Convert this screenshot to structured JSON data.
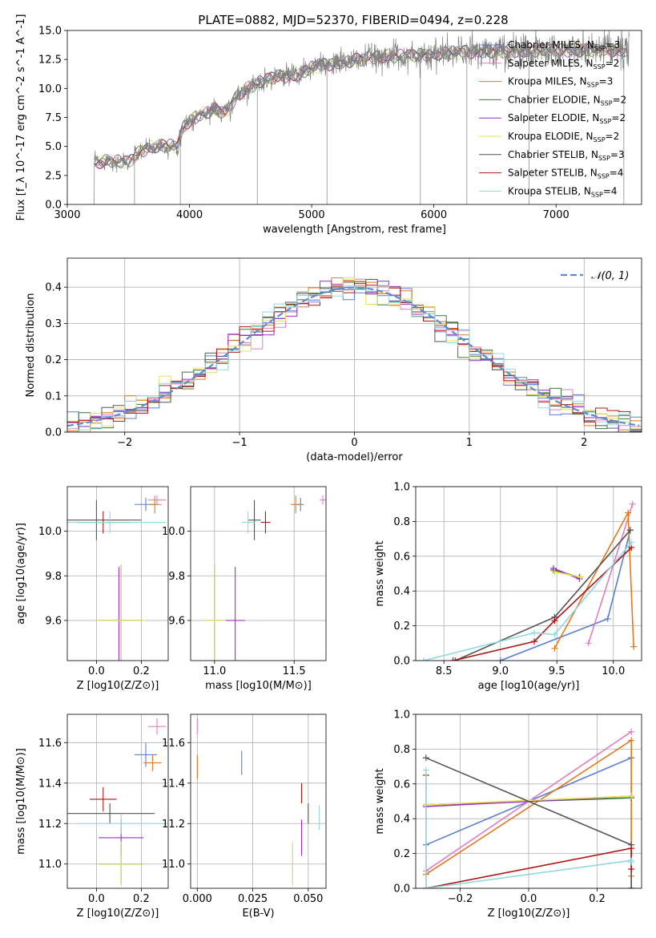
{
  "figure_title": "PLATE=0882, MJD=52370, FIBERID=0494, z=0.228",
  "legend_entries": [
    {
      "label": "Chabrier MILES, N",
      "sub": "SSP",
      "suffix": "=3",
      "color": "#5b7fd6"
    },
    {
      "label": "Salpeter MILES, N",
      "sub": "SSP",
      "suffix": "=2",
      "color": "#e07fc0"
    },
    {
      "label": "Kroupa MILES, N",
      "sub": "SSP",
      "suffix": "=3",
      "color": "#e07a1f"
    },
    {
      "label": "Chabrier ELODIE, N",
      "sub": "SSP",
      "suffix": "=2",
      "color": "#3a7a3a"
    },
    {
      "label": "Salpeter ELODIE, N",
      "sub": "SSP",
      "suffix": "=2",
      "color": "#9b2fc4"
    },
    {
      "label": "Kroupa ELODIE, N",
      "sub": "SSP",
      "suffix": "=2",
      "color": "#e6e05a"
    },
    {
      "label": "Chabrier STELIB, N",
      "sub": "SSP",
      "suffix": "=3",
      "color": "#555555"
    },
    {
      "label": "Salpeter STELIB, N",
      "sub": "SSP",
      "suffix": "=4",
      "color": "#b01515"
    },
    {
      "label": "Kroupa STELIB, N",
      "sub": "SSP",
      "suffix": "=4",
      "color": "#8fd9e0"
    }
  ],
  "chart_data": [
    {
      "id": "spectrum",
      "type": "line",
      "xlabel": "wavelength [Angstrom, rest frame]",
      "ylabel": "Flux [f_λ 10^-17 erg cm^-2 s^-1 A^-1]",
      "xlim": [
        3000,
        7700
      ],
      "ylim": [
        0,
        15
      ],
      "xticks": [
        "3000",
        "4000",
        "5000",
        "6000",
        "7000"
      ],
      "yticks": [
        "0.0",
        "2.5",
        "5.0",
        "7.5",
        "10.0",
        "12.5",
        "15.0"
      ],
      "data_color": "#808080",
      "profile_x": [
        3220,
        3350,
        3500,
        3600,
        3700,
        3800,
        3900,
        3950,
        4000,
        4100,
        4200,
        4300,
        4400,
        4500,
        4600,
        4700,
        4800,
        4900,
        5000,
        5200,
        5400,
        5600,
        5800,
        6000,
        6200,
        6400,
        6600,
        6800,
        7000,
        7200,
        7400,
        7600
      ],
      "profile_y": [
        3.6,
        3.8,
        3.6,
        4.6,
        5.0,
        5.1,
        5.0,
        6.6,
        7.2,
        7.8,
        8.2,
        7.9,
        9.5,
        10.2,
        10.6,
        11.0,
        11.1,
        11.2,
        11.8,
        12.2,
        12.5,
        12.8,
        12.8,
        13.0,
        13.1,
        13.2,
        13.2,
        13.3,
        13.3,
        13.3,
        13.3,
        13.3
      ],
      "grid": false,
      "legend_position": "upper right"
    },
    {
      "id": "residual-histogram",
      "type": "histogram",
      "xlabel": "(data-model)/error",
      "ylabel": "Normed distribution",
      "xlim": [
        -2.5,
        2.5
      ],
      "ylim": [
        0,
        0.48
      ],
      "xticks": [
        "−2",
        "−1",
        "0",
        "1",
        "2"
      ],
      "yticks": [
        "0.0",
        "0.1",
        "0.2",
        "0.3",
        "0.4"
      ],
      "reference_label": "𝒩(0, 1)",
      "reference_color": "#5b8bd6",
      "bin_width": 0.1,
      "grid": true,
      "legend_position": "upper right"
    },
    {
      "id": "age-vs-Z",
      "type": "errorbar",
      "xlabel": "Z [log10(Z/Z⊙)]",
      "ylabel": "age [log10(age/yr)]",
      "xlim": [
        -0.13,
        0.32
      ],
      "ylim": [
        9.42,
        10.2
      ],
      "xticks": [
        "0.0",
        "0.2"
      ],
      "yticks": [
        "9.6",
        "9.8",
        "10.0"
      ],
      "points": [
        {
          "color": "#5b7fd6",
          "x": 0.22,
          "xerr": 0.05,
          "y": 10.12,
          "yerr": 0.03
        },
        {
          "color": "#e07fc0",
          "x": 0.27,
          "xerr": 0.04,
          "y": 10.14,
          "yerr": 0.02
        },
        {
          "color": "#e07a1f",
          "x": 0.26,
          "xerr": 0.03,
          "y": 10.12,
          "yerr": 0.04
        },
        {
          "color": "#3a7a3a",
          "x": 0.11,
          "xerr": 0.1,
          "y": 9.6,
          "yerr": 0.25
        },
        {
          "color": "#9b2fc4",
          "x": 0.1,
          "xerr": 0.1,
          "y": 9.6,
          "yerr": 0.24
        },
        {
          "color": "#e6e05a",
          "x": 0.11,
          "xerr": 0.11,
          "y": 9.6,
          "yerr": 0.25
        },
        {
          "color": "#555555",
          "x": 0.0,
          "xerr": 0.2,
          "y": 10.05,
          "yerr": 0.09
        },
        {
          "color": "#b01515",
          "x": 0.03,
          "xerr": 0.12,
          "y": 10.04,
          "yerr": 0.05
        },
        {
          "color": "#8fd9e0",
          "x": 0.06,
          "xerr": 0.25,
          "y": 10.04,
          "yerr": 0.05
        }
      ],
      "grid": true
    },
    {
      "id": "age-vs-mass",
      "type": "errorbar",
      "xlabel": "mass [log10(M/M⊙)]",
      "ylabel": "",
      "xlim": [
        10.85,
        11.7
      ],
      "ylim": [
        9.42,
        10.2
      ],
      "xticks": [
        "11.0",
        "11.5"
      ],
      "yticks": [
        "9.6",
        "9.8",
        "10.0"
      ],
      "points": [
        {
          "color": "#5b7fd6",
          "x": 11.54,
          "xerr": 0.02,
          "y": 10.12,
          "yerr": 0.03
        },
        {
          "color": "#e07fc0",
          "x": 11.68,
          "xerr": 0.02,
          "y": 10.14,
          "yerr": 0.02
        },
        {
          "color": "#e07a1f",
          "x": 11.51,
          "xerr": 0.03,
          "y": 10.12,
          "yerr": 0.04
        },
        {
          "color": "#3a7a3a",
          "x": 11.0,
          "xerr": 0.07,
          "y": 9.6,
          "yerr": 0.25
        },
        {
          "color": "#9b2fc4",
          "x": 11.13,
          "xerr": 0.06,
          "y": 9.6,
          "yerr": 0.24
        },
        {
          "color": "#e6e05a",
          "x": 11.0,
          "xerr": 0.07,
          "y": 9.6,
          "yerr": 0.25
        },
        {
          "color": "#555555",
          "x": 11.25,
          "xerr": 0.04,
          "y": 10.05,
          "yerr": 0.09
        },
        {
          "color": "#b01515",
          "x": 11.32,
          "xerr": 0.03,
          "y": 10.04,
          "yerr": 0.05
        },
        {
          "color": "#8fd9e0",
          "x": 11.21,
          "xerr": 0.04,
          "y": 10.04,
          "yerr": 0.05
        }
      ],
      "grid": true
    },
    {
      "id": "massweight-vs-age",
      "type": "line",
      "xlabel": "age [log10(age/yr)]",
      "ylabel": "mass weight",
      "xlim": [
        8.25,
        10.25
      ],
      "ylim": [
        0,
        1
      ],
      "xticks": [
        "8.5",
        "9.0",
        "9.5",
        "10.0"
      ],
      "yticks": [
        "0.0",
        "0.2",
        "0.4",
        "0.6",
        "0.8",
        "1.0"
      ],
      "series": [
        {
          "color": "#5b7fd6",
          "x": [
            9.0,
            9.95,
            10.15
          ],
          "y": [
            0.0,
            0.24,
            0.75
          ]
        },
        {
          "color": "#e07fc0",
          "x": [
            9.78,
            10.17
          ],
          "y": [
            0.1,
            0.9
          ]
        },
        {
          "color": "#e07a1f",
          "x": [
            9.48,
            10.13,
            10.18
          ],
          "y": [
            0.07,
            0.85,
            0.08
          ]
        },
        {
          "color": "#3a7a3a",
          "x": [
            9.47,
            9.7
          ],
          "y": [
            0.52,
            0.48
          ]
        },
        {
          "color": "#9b2fc4",
          "x": [
            9.47,
            9.7
          ],
          "y": [
            0.53,
            0.47
          ]
        },
        {
          "color": "#e6e05a",
          "x": [
            9.48,
            9.71
          ],
          "y": [
            0.51,
            0.48
          ]
        },
        {
          "color": "#555555",
          "x": [
            8.6,
            9.48,
            10.15
          ],
          "y": [
            0.0,
            0.25,
            0.75
          ]
        },
        {
          "color": "#b01515",
          "x": [
            8.58,
            9.3,
            9.48,
            10.16
          ],
          "y": [
            0.0,
            0.11,
            0.23,
            0.65
          ]
        },
        {
          "color": "#8fd9e0",
          "x": [
            8.32,
            9.3,
            9.48,
            10.16
          ],
          "y": [
            0.0,
            0.16,
            0.15,
            0.68
          ]
        }
      ],
      "grid": true
    },
    {
      "id": "mass-vs-Z",
      "type": "errorbar",
      "xlabel": "Z [log10(Z/Z⊙)]",
      "ylabel": "mass [log10(M/M⊙)]",
      "xlim": [
        -0.13,
        0.32
      ],
      "ylim": [
        10.88,
        11.74
      ],
      "xticks": [
        "0.0",
        "0.2"
      ],
      "yticks": [
        "11.0",
        "11.2",
        "11.4",
        "11.6"
      ],
      "points": [
        {
          "color": "#5b7fd6",
          "x": 0.22,
          "xerr": 0.05,
          "y": 11.54,
          "yerr": 0.06
        },
        {
          "color": "#e07fc0",
          "x": 0.27,
          "xerr": 0.04,
          "y": 11.68,
          "yerr": 0.04
        },
        {
          "color": "#e07a1f",
          "x": 0.25,
          "xerr": 0.04,
          "y": 11.5,
          "yerr": 0.04
        },
        {
          "color": "#3a7a3a",
          "x": 0.11,
          "xerr": 0.1,
          "y": 11.0,
          "yerr": 0.1
        },
        {
          "color": "#9b2fc4",
          "x": 0.11,
          "xerr": 0.1,
          "y": 11.13,
          "yerr": 0.09
        },
        {
          "color": "#e6e05a",
          "x": 0.11,
          "xerr": 0.1,
          "y": 11.0,
          "yerr": 0.11
        },
        {
          "color": "#555555",
          "x": 0.06,
          "xerr": 0.2,
          "y": 11.25,
          "yerr": 0.05
        },
        {
          "color": "#b01515",
          "x": 0.03,
          "xerr": 0.06,
          "y": 11.32,
          "yerr": 0.06
        },
        {
          "color": "#8fd9e0",
          "x": 0.11,
          "xerr": 0.2,
          "y": 11.2,
          "yerr": 0.05
        }
      ],
      "grid": true
    },
    {
      "id": "mass-vs-ebv",
      "type": "errorbar",
      "xlabel": "E(B-V)",
      "ylabel": "",
      "xlim": [
        -0.003,
        0.058
      ],
      "ylim": [
        10.88,
        11.74
      ],
      "xticks": [
        "0.000",
        "0.025",
        "0.050"
      ],
      "yticks": [
        "11.0",
        "11.2",
        "11.4",
        "11.6"
      ],
      "points": [
        {
          "color": "#5b7fd6",
          "x": 0.02,
          "xerr": 0,
          "y": 11.5,
          "yerr": 0.06
        },
        {
          "color": "#e07fc0",
          "x": 0.0,
          "xerr": 0,
          "y": 11.68,
          "yerr": 0.04
        },
        {
          "color": "#e07a1f",
          "x": 0.0,
          "xerr": 0,
          "y": 11.48,
          "yerr": 0.06
        },
        {
          "color": "#3a7a3a",
          "x": 0.043,
          "xerr": 0,
          "y": 11.0,
          "yerr": 0.1
        },
        {
          "color": "#9b2fc4",
          "x": 0.047,
          "xerr": 0,
          "y": 11.13,
          "yerr": 0.09
        },
        {
          "color": "#e6e05a",
          "x": 0.043,
          "xerr": 0,
          "y": 11.0,
          "yerr": 0.11
        },
        {
          "color": "#555555",
          "x": 0.05,
          "xerr": 0,
          "y": 11.25,
          "yerr": 0.05
        },
        {
          "color": "#b01515",
          "x": 0.047,
          "xerr": 0,
          "y": 11.35,
          "yerr": 0.05
        },
        {
          "color": "#8fd9e0",
          "x": 0.055,
          "xerr": 0,
          "y": 11.23,
          "yerr": 0.06
        }
      ],
      "grid": true
    },
    {
      "id": "massweight-vs-Z",
      "type": "line",
      "xlabel": "Z [log10(Z/Z⊙)]",
      "ylabel": "mass weight",
      "xlim": [
        -0.33,
        0.33
      ],
      "ylim": [
        0,
        1
      ],
      "xticks": [
        "−0.2",
        "0.0",
        "0.2"
      ],
      "yticks": [
        "0.0",
        "0.2",
        "0.4",
        "0.6",
        "0.8",
        "1.0"
      ],
      "series": [
        {
          "color": "#5b7fd6",
          "x": [
            -0.3,
            0.3,
            0.3,
            0.3
          ],
          "y": [
            0.25,
            0.75,
            0.0,
            0.75
          ]
        },
        {
          "color": "#e07fc0",
          "x": [
            -0.3,
            0.3
          ],
          "y": [
            0.1,
            0.9
          ]
        },
        {
          "color": "#e07a1f",
          "x": [
            -0.3,
            0.3,
            0.3
          ],
          "y": [
            0.08,
            0.85,
            0.07
          ]
        },
        {
          "color": "#3a7a3a",
          "x": [
            -0.3,
            0.3
          ],
          "y": [
            0.48,
            0.52
          ]
        },
        {
          "color": "#9b2fc4",
          "x": [
            -0.3,
            0.3
          ],
          "y": [
            0.47,
            0.53
          ]
        },
        {
          "color": "#e6e05a",
          "x": [
            -0.3,
            0.3
          ],
          "y": [
            0.48,
            0.53
          ]
        },
        {
          "color": "#555555",
          "x": [
            -0.3,
            0.3,
            0.3
          ],
          "y": [
            0.75,
            0.25,
            0.0
          ]
        },
        {
          "color": "#b01515",
          "x": [
            -0.3,
            -0.3,
            0.3,
            0.3
          ],
          "y": [
            0.65,
            0.0,
            0.23,
            0.11
          ]
        },
        {
          "color": "#8fd9e0",
          "x": [
            -0.3,
            -0.3,
            0.3,
            0.3
          ],
          "y": [
            0.68,
            0.0,
            0.16,
            0.15
          ]
        }
      ],
      "grid": true
    }
  ]
}
